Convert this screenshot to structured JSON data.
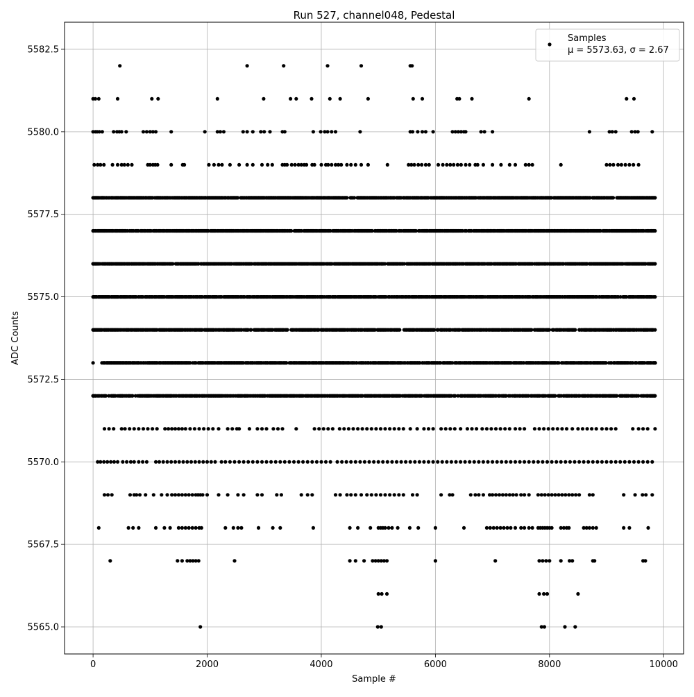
{
  "chart_data": {
    "type": "scatter",
    "title": "Run 527, channel048, Pedestal",
    "xlabel": "Sample #",
    "ylabel": "ADC Counts",
    "xlim": [
      -500,
      10350
    ],
    "ylim": [
      5564.18,
      5583.32
    ],
    "xticks": [
      0,
      2000,
      4000,
      6000,
      8000,
      10000
    ],
    "xtick_labels": [
      "0",
      "2000",
      "4000",
      "6000",
      "8000",
      "10000"
    ],
    "yticks": [
      5565.0,
      5567.5,
      5570.0,
      5572.5,
      5575.0,
      5577.5,
      5580.0,
      5582.5
    ],
    "ytick_labels": [
      "5565.0",
      "5567.5",
      "5570.0",
      "5572.5",
      "5575.0",
      "5577.5",
      "5580.0",
      "5582.5"
    ],
    "grid": true,
    "legend_position": "top-right",
    "series": [
      {
        "name": "Samples",
        "stats_label": "μ = 5573.63, σ = 2.67",
        "color": "#000000",
        "x_range": [
          0,
          9850
        ],
        "n_points": 9850,
        "level_distribution": [
          {
            "y": 5565,
            "x_values": [
              1880,
              4990,
              5050,
              7860,
              7910,
              8270,
              8450
            ]
          },
          {
            "y": 5566,
            "x_values": [
              5000,
              5060,
              5150,
              7820,
              7900,
              7960,
              8500
            ]
          },
          {
            "y": 5567,
            "x_values": [
              300,
              1480,
              1560,
              1650,
              1700,
              1750,
              1800,
              1850,
              2480,
              4500,
              4600,
              4750,
              4900,
              4950,
              5000,
              5050,
              5100,
              5150,
              6000,
              7050,
              7820,
              7880,
              7940,
              8000,
              8200,
              8350,
              8400,
              8760,
              8790,
              9640,
              9680
            ]
          },
          {
            "y": 5568,
            "x_values": [
              100,
              620,
              700,
              800,
              1100,
              1250,
              1350,
              1500,
              1560,
              1620,
              1680,
              1740,
              1800,
              1860,
              1900,
              2320,
              2460,
              2540,
              2600,
              2900,
              3150,
              3280,
              3860,
              4500,
              4640,
              4860,
              5000,
              5040,
              5080,
              5120,
              5180,
              5240,
              5340,
              5550,
              5700,
              6000,
              6500,
              6900,
              6960,
              7020,
              7080,
              7140,
              7200,
              7260,
              7320,
              7400,
              7500,
              7560,
              7640,
              7700,
              7800,
              7840,
              7880,
              7920,
              7960,
              8000,
              8040,
              8200,
              8250,
              8300,
              8340,
              8600,
              8650,
              8700,
              8760,
              8820,
              9300,
              9400,
              9730
            ]
          },
          {
            "y": 5569,
            "x_values": [
              200,
              260,
              330,
              650,
              720,
              760,
              820,
              920,
              1060,
              1200,
              1300,
              1380,
              1440,
              1500,
              1560,
              1620,
              1680,
              1740,
              1800,
              1840,
              1880,
              1920,
              2000,
              2200,
              2360,
              2540,
              2640,
              2880,
              2960,
              3220,
              3300,
              3650,
              3760,
              3840,
              4250,
              4330,
              4450,
              4520,
              4600,
              4700,
              4800,
              4880,
              4960,
              5040,
              5120,
              5200,
              5280,
              5360,
              5440,
              5600,
              5680,
              6100,
              6250,
              6300,
              6620,
              6700,
              6760,
              6840,
              6950,
              7000,
              7060,
              7120,
              7180,
              7240,
              7300,
              7360,
              7420,
              7500,
              7560,
              7640,
              7800,
              7860,
              7920,
              7980,
              8040,
              8100,
              8160,
              8220,
              8280,
              8340,
              8400,
              8460,
              8520,
              8700,
              8760,
              9300,
              9500,
              9630,
              9690,
              9800
            ]
          },
          {
            "y": 5570,
            "x_values": [
              80,
              130,
              190,
              250,
              310,
              370,
              430,
              520,
              590,
              660,
              720,
              800,
              870,
              940,
              1100,
              1160,
              1230,
              1300,
              1370,
              1440,
              1510,
              1580,
              1650,
              1720,
              1790,
              1860,
              1930,
              2000,
              2070,
              2140,
              2250,
              2320,
              2400,
              2480,
              2560,
              2640,
              2720,
              2800,
              2880,
              2960,
              3040,
              3120,
              3200,
              3280,
              3360,
              3440,
              3520,
              3600,
              3680,
              3760,
              3840,
              3920,
              4000,
              4080,
              4160,
              4280,
              4360,
              4440,
              4520,
              4600,
              4680,
              4760,
              4840,
              4920,
              5000,
              5080,
              5160,
              5240,
              5320,
              5400,
              5480,
              5560,
              5640,
              5720,
              5800,
              5880,
              5960,
              6040,
              6120,
              6200,
              6280,
              6360,
              6440,
              6520,
              6600,
              6680,
              6760,
              6840,
              6920,
              7000,
              7080,
              7160,
              7240,
              7320,
              7400,
              7480,
              7560,
              7640,
              7720,
              7800,
              7880,
              7960,
              8040,
              8120,
              8200,
              8280,
              8360,
              8440,
              8520,
              8600,
              8680,
              8760,
              8840,
              8920,
              9000,
              9080,
              9160,
              9240,
              9320,
              9400,
              9480,
              9560,
              9640,
              9720,
              9800
            ]
          },
          {
            "y": 5571,
            "x_values": [
              200,
              280,
              360,
              500,
              560,
              640,
              720,
              800,
              880,
              960,
              1040,
              1120,
              1260,
              1320,
              1380,
              1440,
              1500,
              1560,
              1620,
              1700,
              1780,
              1860,
              1940,
              2020,
              2100,
              2200,
              2360,
              2440,
              2520,
              2560,
              2740,
              2880,
              2960,
              3040,
              3160,
              3240,
              3320,
              3560,
              3880,
              3960,
              4040,
              4120,
              4200,
              4320,
              4400,
              4480,
              4560,
              4640,
              4720,
              4800,
              4880,
              4960,
              5040,
              5120,
              5200,
              5280,
              5360,
              5440,
              5560,
              5680,
              5800,
              5880,
              5960,
              6100,
              6180,
              6260,
              6340,
              6440,
              6560,
              6640,
              6720,
              6820,
              6900,
              6980,
              7060,
              7140,
              7220,
              7300,
              7400,
              7480,
              7560,
              7740,
              7820,
              7900,
              7980,
              8060,
              8140,
              8220,
              8300,
              8400,
              8500,
              8580,
              8660,
              8740,
              8820,
              8920,
              9000,
              9080,
              9160,
              9460,
              9560,
              9640,
              9720,
              9850
            ]
          },
          {
            "y": 5572,
            "x_values": [
              0,
              9850
            ],
            "dense": true
          },
          {
            "y": 5573,
            "x_values": [
              0,
              150,
              9850
            ],
            "dense": true
          },
          {
            "y": 5574,
            "x_values": [
              0,
              9850
            ],
            "dense": true
          },
          {
            "y": 5575,
            "x_values": [
              0,
              9850
            ],
            "dense": true
          },
          {
            "y": 5576,
            "x_values": [
              0,
              9850
            ],
            "dense": true
          },
          {
            "y": 5577,
            "x_values": [
              0,
              9850
            ],
            "dense": true
          },
          {
            "y": 5578,
            "x_values": [
              0,
              9850
            ],
            "dense": true
          },
          {
            "y": 5579,
            "x_values": [
              20,
              80,
              130,
              190,
              340,
              430,
              500,
              550,
              610,
              680,
              960,
              1000,
              1050,
              1090,
              1130,
              1370,
              1570,
              1600,
              2030,
              2120,
              2200,
              2260,
              2400,
              2560,
              2700,
              2800,
              2960,
              3060,
              3140,
              3320,
              3360,
              3400,
              3480,
              3540,
              3600,
              3650,
              3700,
              3740,
              3840,
              3880,
              4000,
              4080,
              4120,
              4180,
              4250,
              4300,
              4350,
              4450,
              4520,
              4600,
              4700,
              4820,
              5160,
              5530,
              5580,
              5630,
              5700,
              5760,
              5830,
              5890,
              6050,
              6130,
              6200,
              6260,
              6320,
              6390,
              6450,
              6530,
              6600,
              6700,
              6740,
              6840,
              7000,
              7150,
              7300,
              7400,
              7580,
              7640,
              7700,
              8200,
              9000,
              9060,
              9120,
              9200,
              9260,
              9330,
              9400,
              9470,
              9560
            ]
          },
          {
            "y": 5580,
            "x_values": [
              0,
              40,
              70,
              110,
              160,
              360,
              420,
              460,
              500,
              580,
              880,
              940,
              1000,
              1050,
              1100,
              1370,
              1960,
              2180,
              2230,
              2290,
              2630,
              2700,
              2800,
              2940,
              3000,
              3100,
              3320,
              3360,
              3860,
              3990,
              4060,
              4110,
              4180,
              4250,
              4680,
              5560,
              5600,
              5690,
              5770,
              5830,
              5960,
              6300,
              6350,
              6400,
              6450,
              6500,
              6530,
              6800,
              6860,
              7000,
              8700,
              9050,
              9100,
              9160,
              9440,
              9500,
              9550,
              9800
            ]
          },
          {
            "y": 5581,
            "x_values": [
              0,
              40,
              100,
              430,
              1030,
              1140,
              2180,
              2990,
              3460,
              3560,
              3830,
              4150,
              4330,
              4820,
              5610,
              5770,
              6380,
              6420,
              6640,
              7640,
              9350,
              9480
            ]
          },
          {
            "y": 5582,
            "x_values": [
              470,
              2700,
              3340,
              4110,
              4700,
              5560,
              5590
            ]
          }
        ]
      }
    ]
  }
}
